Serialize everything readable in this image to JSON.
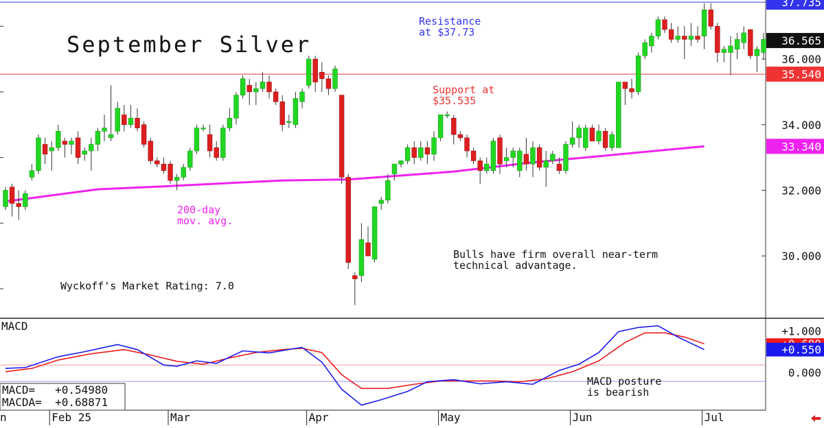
{
  "chart_data": [
    {
      "type": "candlestick",
      "title": "September Silver",
      "ylim": [
        28.1,
        37.8
      ],
      "yticks": [
        "30.000",
        "32.000",
        "34.000",
        "36.000"
      ],
      "ytick_values": [
        30,
        32,
        34,
        36
      ],
      "x_labels": [
        "Feb 25",
        "Mar",
        "Apr",
        "May",
        "Jun",
        "Jul"
      ],
      "x_label_bar_index": [
        7,
        25,
        46,
        66,
        86,
        106
      ],
      "first_label_fragment": "n",
      "lines": [
        {
          "name": "Resistance",
          "value": 37.735,
          "color": "#3333ee",
          "label": "37.735"
        },
        {
          "name": "Last",
          "value": 36.565,
          "color": "#111111",
          "label": "36.565"
        },
        {
          "name": "Support",
          "value": 35.54,
          "color": "#ee3333",
          "label": "35.540"
        },
        {
          "name": "200-day",
          "value": 33.34,
          "color": "#ee22ee",
          "label": "33.340"
        }
      ],
      "annotations": {
        "resistance": [
          "Resistance",
          "at $37.73"
        ],
        "support": [
          "Support at",
          "$35.535"
        ],
        "ma": [
          "200-day",
          "mov. avg."
        ],
        "bulls": [
          "Bulls have firm overall near-term",
          "technical advantage."
        ],
        "rating": "Wyckoff's Market Rating: 7.0"
      },
      "ma200": [
        31.66,
        32.03,
        32.12,
        32.3,
        32.33,
        32.57,
        32.85,
        33.34
      ],
      "ma200_bar_index": [
        0,
        14,
        24,
        42,
        52,
        68,
        80,
        106
      ],
      "candles": [
        [
          31.5,
          32.1,
          31.4,
          32.0
        ],
        [
          32.1,
          32.2,
          31.2,
          31.6
        ],
        [
          31.6,
          32.0,
          31.1,
          31.5
        ],
        [
          31.5,
          32.0,
          31.4,
          31.9
        ],
        [
          32.4,
          32.8,
          32.3,
          32.6
        ],
        [
          32.6,
          33.7,
          32.5,
          33.6
        ],
        [
          33.4,
          33.6,
          32.8,
          33.1
        ],
        [
          33.2,
          33.5,
          32.6,
          33.3
        ],
        [
          33.3,
          34.0,
          33.2,
          33.8
        ],
        [
          33.5,
          33.6,
          33.0,
          33.4
        ],
        [
          33.4,
          33.6,
          33.1,
          33.5
        ],
        [
          33.6,
          33.8,
          32.8,
          33.0
        ],
        [
          33.1,
          33.3,
          32.9,
          33.2
        ],
        [
          33.2,
          33.6,
          32.6,
          33.4
        ],
        [
          33.4,
          33.9,
          33.2,
          33.8
        ],
        [
          33.8,
          34.3,
          33.5,
          33.9
        ],
        [
          33.6,
          35.2,
          33.5,
          33.7
        ],
        [
          33.8,
          34.7,
          33.7,
          34.5
        ],
        [
          34.3,
          34.6,
          33.8,
          34.0
        ],
        [
          34.0,
          34.6,
          33.9,
          34.2
        ],
        [
          34.2,
          34.5,
          33.8,
          33.9
        ],
        [
          34.0,
          34.1,
          33.3,
          33.4
        ],
        [
          33.5,
          33.6,
          32.8,
          32.9
        ],
        [
          32.9,
          33.0,
          32.7,
          32.8
        ],
        [
          32.8,
          33.0,
          32.5,
          32.6
        ],
        [
          32.8,
          32.9,
          32.2,
          32.3
        ],
        [
          32.3,
          32.5,
          32.0,
          32.4
        ],
        [
          32.4,
          32.8,
          32.3,
          32.7
        ],
        [
          32.7,
          33.3,
          32.6,
          33.2
        ],
        [
          33.2,
          34.0,
          33.1,
          33.9
        ],
        [
          33.9,
          34.0,
          33.8,
          33.9
        ],
        [
          33.7,
          34.0,
          33.0,
          33.2
        ],
        [
          33.3,
          33.5,
          32.9,
          33.0
        ],
        [
          33.0,
          34.0,
          32.9,
          33.9
        ],
        [
          33.9,
          34.5,
          33.8,
          34.2
        ],
        [
          34.2,
          35.0,
          34.0,
          34.9
        ],
        [
          34.9,
          35.5,
          34.8,
          35.4
        ],
        [
          35.2,
          35.4,
          34.6,
          35.0
        ],
        [
          35.0,
          35.3,
          34.6,
          35.1
        ],
        [
          35.1,
          35.6,
          35.0,
          35.3
        ],
        [
          35.3,
          35.5,
          34.8,
          35.0
        ],
        [
          35.0,
          35.1,
          34.6,
          34.7
        ],
        [
          34.7,
          34.9,
          33.8,
          34.0
        ],
        [
          34.1,
          34.3,
          33.9,
          34.1
        ],
        [
          34.0,
          35.0,
          33.9,
          34.8
        ],
        [
          34.7,
          35.1,
          34.5,
          35.0
        ],
        [
          35.2,
          36.1,
          35.1,
          36.0
        ],
        [
          36.0,
          36.1,
          35.0,
          35.3
        ],
        [
          35.6,
          35.9,
          35.0,
          35.4
        ],
        [
          35.4,
          35.5,
          34.9,
          35.1
        ],
        [
          35.1,
          35.8,
          35.0,
          35.7
        ],
        [
          34.9,
          34.9,
          32.2,
          32.4
        ],
        [
          32.4,
          32.5,
          29.6,
          29.8
        ],
        [
          29.4,
          29.5,
          28.5,
          29.3
        ],
        [
          29.4,
          31.0,
          29.2,
          30.5
        ],
        [
          30.4,
          30.9,
          30.0,
          30.0
        ],
        [
          29.9,
          31.5,
          29.8,
          31.5
        ],
        [
          31.6,
          31.8,
          31.4,
          31.7
        ],
        [
          31.7,
          32.5,
          31.6,
          32.3
        ],
        [
          32.5,
          32.8,
          32.3,
          32.8
        ],
        [
          32.8,
          32.9,
          32.7,
          32.9
        ],
        [
          32.9,
          33.4,
          32.8,
          33.3
        ],
        [
          33.3,
          33.5,
          32.8,
          33.0
        ],
        [
          33.0,
          33.5,
          32.9,
          33.3
        ],
        [
          33.3,
          33.5,
          32.8,
          33.1
        ],
        [
          33.1,
          33.8,
          32.9,
          33.6
        ],
        [
          33.6,
          34.3,
          33.5,
          34.3
        ],
        [
          34.3,
          34.4,
          34.2,
          34.3
        ],
        [
          34.2,
          34.3,
          33.4,
          33.7
        ],
        [
          33.7,
          33.8,
          33.5,
          33.6
        ],
        [
          33.6,
          33.7,
          33.0,
          33.2
        ],
        [
          33.2,
          33.3,
          32.8,
          32.9
        ],
        [
          32.9,
          33.0,
          32.2,
          32.6
        ],
        [
          32.6,
          33.0,
          32.5,
          32.8
        ],
        [
          32.6,
          33.6,
          32.5,
          33.5
        ],
        [
          33.6,
          33.7,
          32.5,
          32.8
        ],
        [
          32.9,
          33.3,
          32.7,
          33.0
        ],
        [
          33.0,
          33.3,
          32.7,
          33.2
        ],
        [
          32.6,
          33.3,
          32.4,
          33.2
        ],
        [
          33.1,
          33.6,
          32.6,
          32.8
        ],
        [
          32.8,
          33.5,
          32.4,
          33.3
        ],
        [
          33.3,
          33.4,
          32.6,
          32.7
        ],
        [
          32.7,
          33.2,
          32.1,
          32.9
        ],
        [
          32.9,
          33.2,
          32.8,
          33.1
        ],
        [
          32.8,
          33.0,
          32.5,
          32.6
        ],
        [
          32.6,
          33.5,
          32.5,
          33.4
        ],
        [
          33.4,
          34.1,
          33.3,
          33.6
        ],
        [
          33.6,
          34.0,
          33.3,
          33.9
        ],
        [
          33.3,
          34.0,
          33.2,
          33.9
        ],
        [
          33.9,
          34.0,
          33.5,
          33.5
        ],
        [
          33.5,
          34.0,
          33.4,
          33.8
        ],
        [
          33.8,
          33.9,
          33.2,
          33.3
        ],
        [
          33.3,
          33.8,
          33.2,
          33.7
        ],
        [
          33.3,
          35.3,
          33.3,
          35.3
        ],
        [
          35.3,
          35.3,
          34.6,
          35.1
        ],
        [
          35.1,
          35.4,
          34.8,
          35.0
        ],
        [
          35.0,
          36.2,
          34.9,
          36.1
        ],
        [
          36.1,
          36.6,
          36.0,
          36.5
        ],
        [
          36.4,
          36.8,
          36.2,
          36.7
        ],
        [
          36.7,
          37.3,
          36.6,
          37.2
        ],
        [
          37.2,
          37.3,
          36.8,
          36.9
        ],
        [
          36.9,
          37.1,
          36.5,
          36.6
        ],
        [
          36.6,
          37.0,
          36.5,
          36.7
        ],
        [
          36.7,
          37.0,
          36.0,
          36.6
        ],
        [
          36.6,
          37.1,
          36.4,
          36.7
        ],
        [
          36.7,
          37.0,
          36.5,
          36.6
        ],
        [
          36.7,
          37.7,
          36.3,
          37.5
        ],
        [
          37.5,
          37.7,
          36.9,
          37.0
        ],
        [
          37.0,
          37.1,
          35.9,
          36.2
        ],
        [
          36.2,
          36.4,
          35.9,
          36.3
        ],
        [
          36.2,
          36.7,
          35.5,
          36.4
        ],
        [
          36.3,
          36.8,
          36.0,
          36.6
        ],
        [
          36.5,
          37.0,
          36.3,
          36.8
        ],
        [
          36.9,
          36.9,
          36.0,
          36.1
        ],
        [
          36.1,
          36.4,
          35.6,
          36.3
        ],
        [
          36.2,
          36.8,
          36.0,
          36.6
        ]
      ]
    },
    {
      "type": "line",
      "title": "MACD",
      "ylim": [
        -0.9,
        1.3
      ],
      "yticks": [
        "+1.000",
        "0.000"
      ],
      "ytick_values": [
        1.0,
        0.0
      ],
      "readout": [
        "MACD=   +0.54980",
        "MACDA=  +0.68871"
      ],
      "annotation": [
        "MACD posture",
        "is bearish"
      ],
      "series": [
        {
          "name": "MACD",
          "color": "#1a1aee",
          "label": "+0.550",
          "last": 0.55,
          "x": [
            0,
            3,
            8,
            12,
            17,
            20,
            24,
            26,
            29,
            32,
            36,
            40,
            44,
            45,
            48,
            51,
            54,
            57,
            61,
            64,
            68,
            72,
            76,
            80,
            84,
            87,
            90,
            93,
            96,
            99,
            102,
            104,
            106
          ],
          "values": [
            0.1,
            0.12,
            0.38,
            0.5,
            0.67,
            0.55,
            0.18,
            0.15,
            0.28,
            0.22,
            0.52,
            0.47,
            0.58,
            0.6,
            0.25,
            -0.4,
            -0.78,
            -0.65,
            -0.45,
            -0.22,
            -0.17,
            -0.27,
            -0.22,
            -0.28,
            0.05,
            0.2,
            0.48,
            0.98,
            1.08,
            1.12,
            0.85,
            0.7,
            0.55
          ]
        },
        {
          "name": "MACDA",
          "color": "#ee1a1a",
          "label": "+0.689",
          "last": 0.689,
          "x": [
            0,
            4,
            8,
            13,
            18,
            22,
            26,
            30,
            34,
            38,
            42,
            45,
            48,
            51,
            54,
            58,
            62,
            66,
            70,
            74,
            78,
            82,
            86,
            90,
            94,
            97,
            100,
            103,
            106
          ],
          "values": [
            0.02,
            0.1,
            0.3,
            0.45,
            0.55,
            0.42,
            0.27,
            0.2,
            0.35,
            0.48,
            0.55,
            0.58,
            0.48,
            -0.05,
            -0.38,
            -0.38,
            -0.28,
            -0.2,
            -0.2,
            -0.2,
            -0.22,
            -0.15,
            0.02,
            0.28,
            0.72,
            0.95,
            0.95,
            0.85,
            0.689
          ]
        }
      ]
    }
  ],
  "colors": {
    "bull": "#22d722",
    "bear": "#dd1f1f",
    "wick": "#333333",
    "ma": "#ee22ee",
    "resistance": "#3333ee",
    "support": "#ee3333"
  },
  "corner_icon": "arrow-left-icon"
}
